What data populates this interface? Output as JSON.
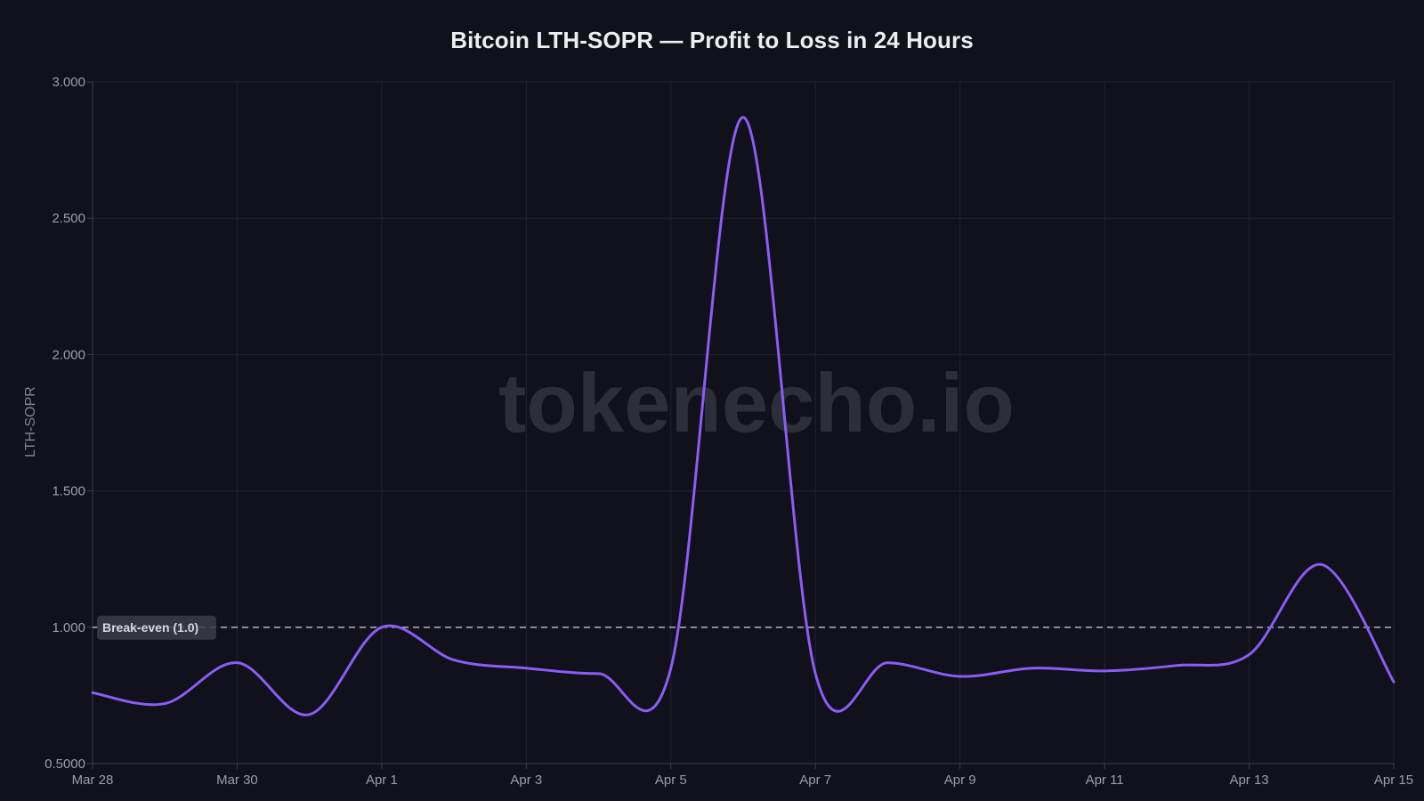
{
  "chart_data": {
    "type": "line",
    "title": "Bitcoin LTH-SOPR — Profit to Loss in 24 Hours",
    "xlabel": "",
    "ylabel": "LTH-SOPR",
    "x_ticks": [
      "Mar 28",
      "Mar 30",
      "Apr 1",
      "Apr 3",
      "Apr 5",
      "Apr 7",
      "Apr 9",
      "Apr 11",
      "Apr 13",
      "Apr 15"
    ],
    "y_ticks": [
      "0.5000",
      "1.000",
      "1.500",
      "2.000",
      "2.500",
      "3.000"
    ],
    "ylim": [
      0.5,
      3.0
    ],
    "xlim": [
      "2024-03-28",
      "2024-04-15"
    ],
    "grid": true,
    "series": [
      {
        "x": [
          "2024-03-28",
          "2024-03-29",
          "2024-03-30",
          "2024-03-31",
          "2024-04-01",
          "2024-04-02",
          "2024-04-03",
          "2024-04-04",
          "2024-04-05",
          "2024-04-06",
          "2024-04-07",
          "2024-04-08",
          "2024-04-09",
          "2024-04-10",
          "2024-04-11",
          "2024-04-12",
          "2024-04-13",
          "2024-04-14",
          "2024-04-15"
        ],
        "values": [
          0.76,
          0.72,
          0.87,
          0.68,
          1.0,
          0.88,
          0.85,
          0.83,
          0.85,
          2.87,
          0.83,
          0.87,
          0.82,
          0.85,
          0.84,
          0.86,
          0.9,
          1.23,
          0.8
        ],
        "color": "#8b5cf6"
      }
    ],
    "reference_line": {
      "value": 1.0,
      "label": "Break-even (1.0)",
      "style": "dashed"
    },
    "watermark": "tokenecho.io"
  }
}
